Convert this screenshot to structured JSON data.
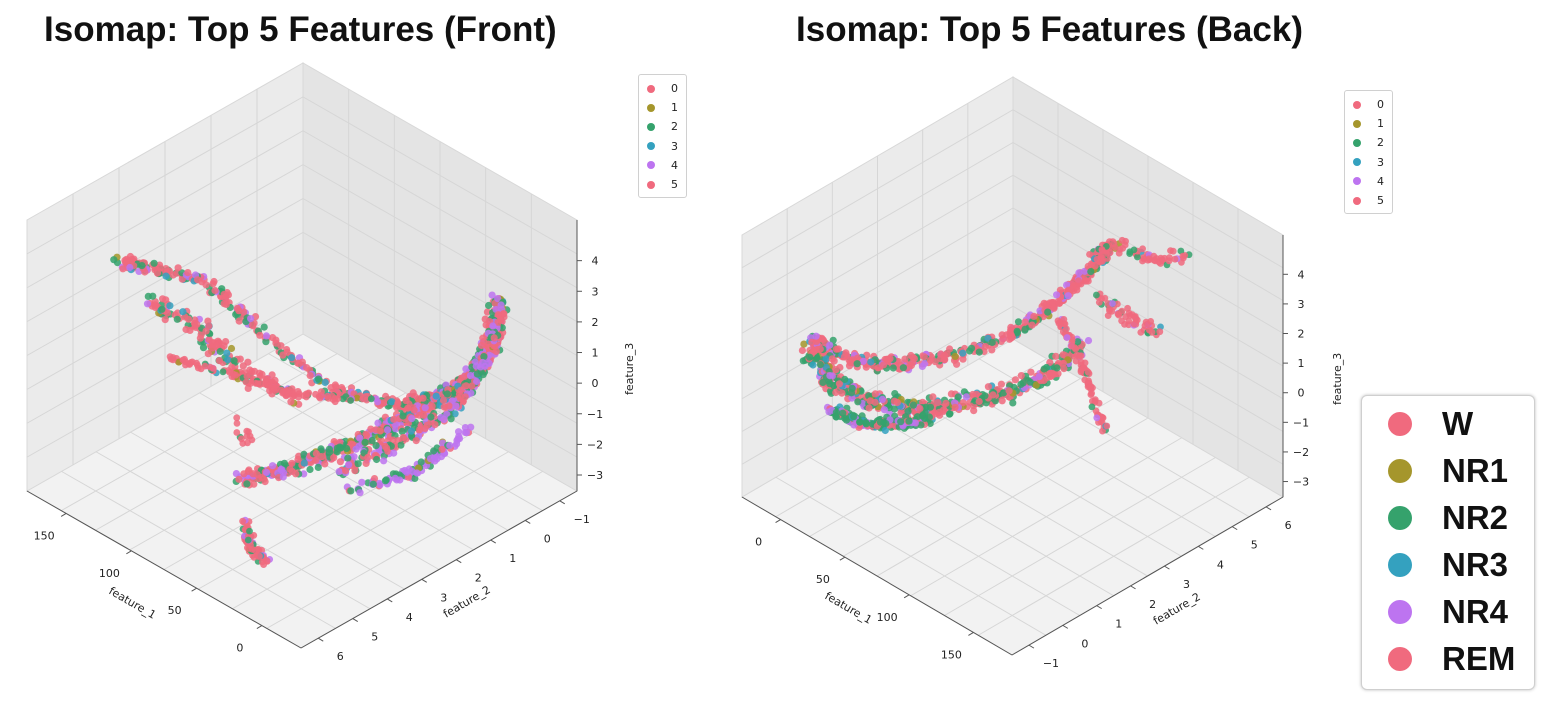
{
  "colors": {
    "c0": "#f06a7e",
    "c1": "#a5962c",
    "c2": "#35a26c",
    "c3": "#34a1bf",
    "c4": "#bd74f0",
    "c5": "#f06a7e"
  },
  "legend_small": [
    {
      "label": "0",
      "color": "#f06a7e"
    },
    {
      "label": "1",
      "color": "#a5962c"
    },
    {
      "label": "2",
      "color": "#35a26c"
    },
    {
      "label": "3",
      "color": "#34a1bf"
    },
    {
      "label": "4",
      "color": "#bd74f0"
    },
    {
      "label": "5",
      "color": "#f06a7e"
    }
  ],
  "legend_big": [
    {
      "label": "W",
      "color": "#f06a7e"
    },
    {
      "label": "NR1",
      "color": "#a5962c"
    },
    {
      "label": "NR2",
      "color": "#35a26c"
    },
    {
      "label": "NR3",
      "color": "#34a1bf"
    },
    {
      "label": "NR4",
      "color": "#bd74f0"
    },
    {
      "label": "REM",
      "color": "#f06a7e"
    }
  ],
  "chart_data": [
    {
      "type": "scatter",
      "subtype": "3d-scatter",
      "title": "Isomap: Top 5 Features (Front)",
      "xlabel": "feature_1",
      "ylabel": "feature_2",
      "zlabel": "feature_3",
      "xticks": [
        "150",
        "100",
        "50",
        "0"
      ],
      "yticks": [
        "6",
        "5",
        "4",
        "3",
        "2",
        "1",
        "0",
        "−1"
      ],
      "zticks": [
        "4",
        "3",
        "2",
        "1",
        "0",
        "−1",
        "−2",
        "−3"
      ],
      "xlim": [
        -20,
        175
      ],
      "ylim": [
        -1.5,
        6.5
      ],
      "zlim": [
        -3.7,
        4.6
      ],
      "legend_labels": [
        "0",
        "1",
        "2",
        "3",
        "4",
        "5"
      ],
      "legend_position": "upper-right",
      "grid": true
    },
    {
      "type": "scatter",
      "subtype": "3d-scatter",
      "title": "Isomap: Top 5 Features (Back)",
      "xlabel": "feature_1",
      "ylabel": "feature_2",
      "zlabel": "feature_3",
      "xticks": [
        "0",
        "50",
        "100",
        "150"
      ],
      "yticks": [
        "−1",
        "0",
        "1",
        "2",
        "3",
        "4",
        "5",
        "6"
      ],
      "zticks": [
        "4",
        "3",
        "2",
        "1",
        "0",
        "−1",
        "−2",
        "−3"
      ],
      "xlim": [
        -20,
        175
      ],
      "ylim": [
        -1.5,
        6.5
      ],
      "zlim": [
        -3.7,
        4.6
      ],
      "legend_labels": [
        "0",
        "1",
        "2",
        "3",
        "4",
        "5"
      ],
      "legend_position": "upper-right",
      "grid": true
    }
  ]
}
